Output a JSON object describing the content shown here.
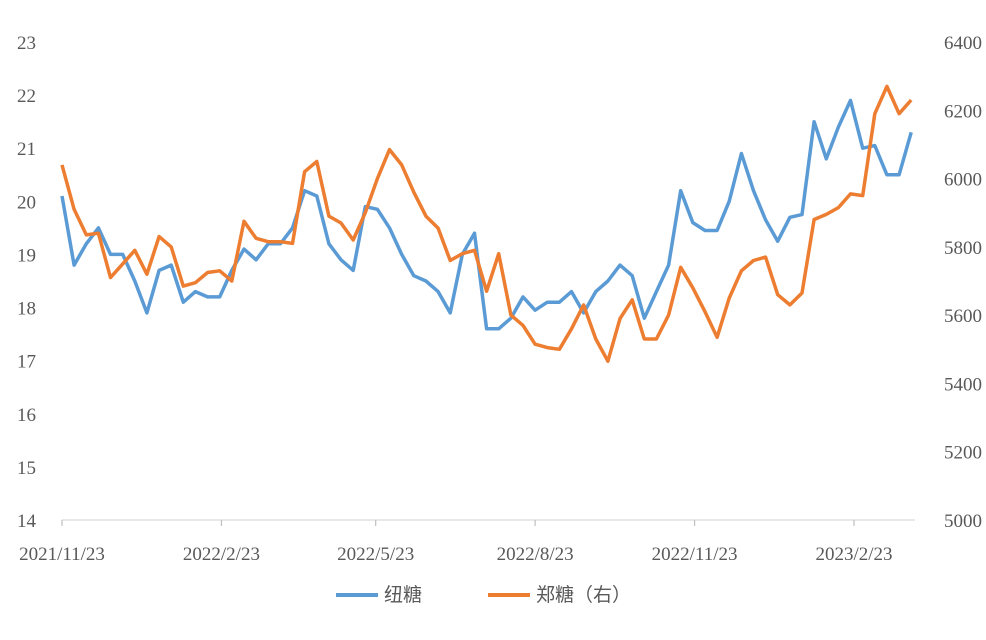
{
  "chart_data": {
    "type": "line",
    "title": "",
    "xlabel": "",
    "ylabel": "",
    "y2label": "",
    "legend_position": "bottom",
    "grid": false,
    "ylim": [
      14,
      23
    ],
    "y2lim": [
      5000,
      6400
    ],
    "yticks": [
      "14",
      "15",
      "16",
      "17",
      "18",
      "19",
      "20",
      "21",
      "22",
      "23"
    ],
    "y2ticks": [
      "5000",
      "5200",
      "5400",
      "5600",
      "5800",
      "6000",
      "6200",
      "6400"
    ],
    "xticks": [
      "2021/11/23",
      "2022/2/23",
      "2022/5/23",
      "2022/8/23",
      "2022/11/23",
      "2023/2/23"
    ],
    "x": [
      "2021-11-23",
      "2021-11-30",
      "2021-12-07",
      "2021-12-14",
      "2021-12-21",
      "2021-12-28",
      "2022-01-04",
      "2022-01-11",
      "2022-01-18",
      "2022-01-25",
      "2022-02-01",
      "2022-02-08",
      "2022-02-15",
      "2022-02-22",
      "2022-03-01",
      "2022-03-08",
      "2022-03-15",
      "2022-03-22",
      "2022-03-29",
      "2022-04-05",
      "2022-04-12",
      "2022-04-19",
      "2022-04-26",
      "2022-05-03",
      "2022-05-10",
      "2022-05-17",
      "2022-05-24",
      "2022-05-31",
      "2022-06-07",
      "2022-06-14",
      "2022-06-21",
      "2022-06-28",
      "2022-07-05",
      "2022-07-12",
      "2022-07-19",
      "2022-07-26",
      "2022-08-02",
      "2022-08-09",
      "2022-08-16",
      "2022-08-23",
      "2022-08-30",
      "2022-09-06",
      "2022-09-13",
      "2022-09-20",
      "2022-09-27",
      "2022-10-04",
      "2022-10-11",
      "2022-10-18",
      "2022-10-25",
      "2022-11-01",
      "2022-11-08",
      "2022-11-15",
      "2022-11-22",
      "2022-11-29",
      "2022-12-06",
      "2022-12-13",
      "2022-12-20",
      "2022-12-27",
      "2023-01-03",
      "2023-01-10",
      "2023-01-17",
      "2023-01-24",
      "2023-01-31",
      "2023-02-07",
      "2023-02-14",
      "2023-02-21",
      "2023-02-28",
      "2023-03-07",
      "2023-03-14",
      "2023-03-21",
      "2023-03-28"
    ],
    "series": [
      {
        "name": "纽糖",
        "axis": "left",
        "color": "#5B9BD5",
        "values": [
          20.1,
          18.8,
          19.2,
          19.5,
          19.0,
          19.0,
          18.5,
          17.9,
          18.7,
          18.8,
          18.1,
          18.3,
          18.2,
          18.2,
          18.7,
          19.1,
          18.9,
          19.2,
          19.2,
          19.5,
          20.2,
          20.1,
          19.2,
          18.9,
          18.7,
          19.9,
          19.85,
          19.5,
          19.0,
          18.6,
          18.5,
          18.3,
          17.9,
          19.0,
          19.4,
          17.6,
          17.6,
          17.8,
          18.2,
          17.95,
          18.1,
          18.1,
          18.3,
          17.9,
          18.3,
          18.5,
          18.8,
          18.6,
          17.8,
          18.3,
          18.8,
          20.2,
          19.6,
          19.45,
          19.45,
          20.0,
          20.9,
          20.2,
          19.65,
          19.25,
          19.7,
          19.75,
          21.5,
          20.8,
          21.4,
          21.9,
          21.0,
          21.05,
          20.5,
          20.5,
          21.3
        ]
      },
      {
        "name": "郑糖（右）",
        "axis": "right",
        "color": "#ED7D31",
        "values": [
          6040,
          5910,
          5835,
          5840,
          5710,
          5750,
          5790,
          5720,
          5830,
          5800,
          5685,
          5695,
          5725,
          5730,
          5700,
          5875,
          5825,
          5815,
          5815,
          5810,
          6020,
          6050,
          5890,
          5870,
          5820,
          5900,
          6000,
          6085,
          6040,
          5960,
          5890,
          5855,
          5760,
          5780,
          5790,
          5670,
          5780,
          5600,
          5570,
          5515,
          5505,
          5500,
          5560,
          5630,
          5530,
          5465,
          5590,
          5645,
          5530,
          5530,
          5600,
          5740,
          5680,
          5610,
          5535,
          5650,
          5730,
          5760,
          5770,
          5660,
          5630,
          5665,
          5880,
          5895,
          5915,
          5955,
          5950,
          6190,
          6270,
          6190,
          6230
        ]
      }
    ]
  }
}
